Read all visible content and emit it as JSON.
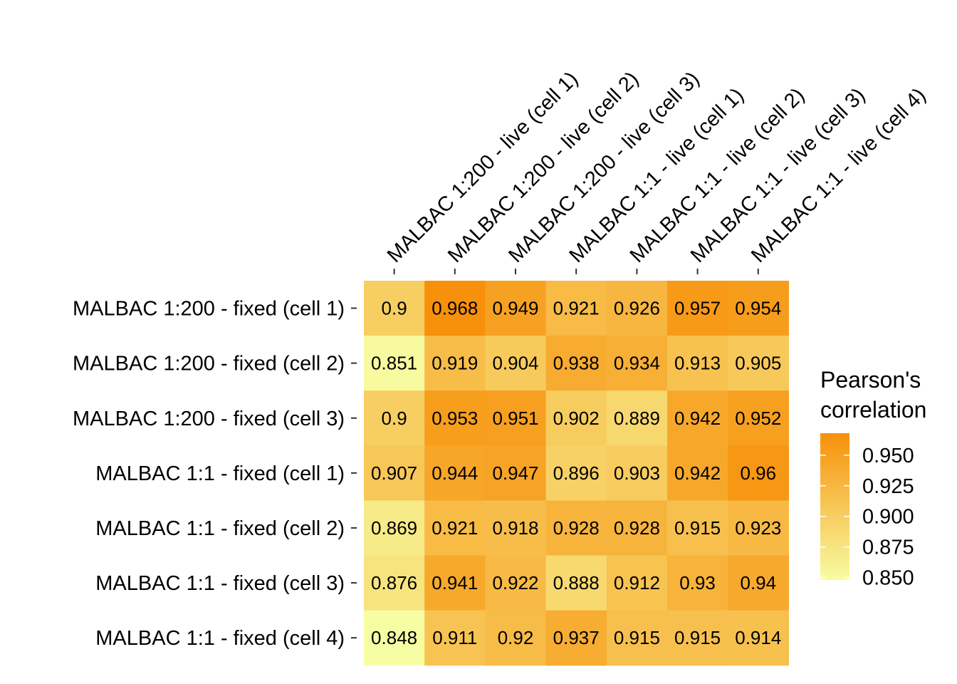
{
  "chart_data": {
    "type": "heatmap",
    "columns": [
      "MALBAC 1:200 - live (cell 1)",
      "MALBAC 1:200 - live (cell 2)",
      "MALBAC 1:200 - live (cell 3)",
      "MALBAC 1:1 - live (cell 1)",
      "MALBAC 1:1 - live (cell 2)",
      "MALBAC 1:1 - live (cell 3)",
      "MALBAC 1:1 - live (cell 4)"
    ],
    "rows": [
      "MALBAC 1:200 - fixed (cell 1)",
      "MALBAC 1:200 - fixed (cell 2)",
      "MALBAC 1:200 - fixed (cell 3)",
      "MALBAC 1:1 - fixed (cell 1)",
      "MALBAC 1:1 - fixed (cell 2)",
      "MALBAC 1:1 - fixed (cell 3)",
      "MALBAC 1:1 - fixed (cell 4)"
    ],
    "values": [
      [
        0.9,
        0.968,
        0.949,
        0.921,
        0.926,
        0.957,
        0.954
      ],
      [
        0.851,
        0.919,
        0.904,
        0.938,
        0.934,
        0.913,
        0.905
      ],
      [
        0.9,
        0.953,
        0.951,
        0.902,
        0.889,
        0.942,
        0.952
      ],
      [
        0.907,
        0.944,
        0.947,
        0.896,
        0.903,
        0.942,
        0.96
      ],
      [
        0.869,
        0.921,
        0.918,
        0.928,
        0.928,
        0.915,
        0.923
      ],
      [
        0.876,
        0.941,
        0.922,
        0.888,
        0.912,
        0.93,
        0.94
      ],
      [
        0.848,
        0.911,
        0.92,
        0.937,
        0.915,
        0.915,
        0.914
      ]
    ],
    "value_labels": [
      [
        "0.9",
        "0.968",
        "0.949",
        "0.921",
        "0.926",
        "0.957",
        "0.954"
      ],
      [
        "0.851",
        "0.919",
        "0.904",
        "0.938",
        "0.934",
        "0.913",
        "0.905"
      ],
      [
        "0.9",
        "0.953",
        "0.951",
        "0.902",
        "0.889",
        "0.942",
        "0.952"
      ],
      [
        "0.907",
        "0.944",
        "0.947",
        "0.896",
        "0.903",
        "0.942",
        "0.96"
      ],
      [
        "0.869",
        "0.921",
        "0.918",
        "0.928",
        "0.928",
        "0.915",
        "0.923"
      ],
      [
        "0.876",
        "0.941",
        "0.922",
        "0.888",
        "0.912",
        "0.93",
        "0.94"
      ],
      [
        "0.848",
        "0.911",
        "0.92",
        "0.937",
        "0.915",
        "0.915",
        "0.914"
      ]
    ],
    "legend": {
      "title_lines": [
        "Pearson's",
        "correlation"
      ],
      "ticks": [
        0.85,
        0.875,
        0.9,
        0.925,
        0.95
      ],
      "tick_labels": [
        "0.850",
        "0.875",
        "0.900",
        "0.925",
        "0.950"
      ],
      "range": [
        0.848,
        0.968
      ],
      "low_color": "#f7fda3",
      "high_color": "#f7900a",
      "position": "right"
    },
    "x_axis_position": "top",
    "grid": false
  }
}
